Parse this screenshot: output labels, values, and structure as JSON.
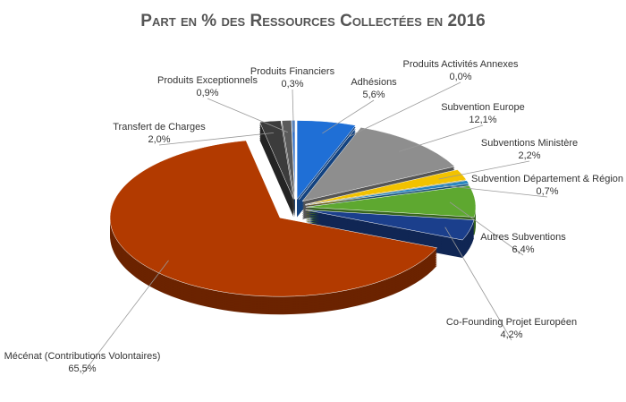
{
  "chart_data": {
    "type": "pie",
    "title": "Part en % des Ressources Collectées en 2016",
    "categories": [
      "Adhésions",
      "Produits Activités Annexes",
      "Subvention Europe",
      "Subventions Ministère",
      "Subvention Département & Région",
      "Autres Subventions",
      "Co-Founding Projet Européen",
      "Mécénat (Contributions Volontaires)",
      "Transfert de Charges",
      "Produits Exceptionnels",
      "Produits Financiers"
    ],
    "values": [
      5.6,
      0.0,
      12.1,
      2.2,
      0.7,
      6.4,
      4.2,
      65.5,
      2.0,
      0.9,
      0.3
    ],
    "value_labels": [
      "5,6%",
      "0,0%",
      "12,1%",
      "2,2%",
      "0,7%",
      "6,4%",
      "4,2%",
      "65,5%",
      "2,0%",
      "0,9%",
      "0,3%"
    ],
    "colors": [
      "#1f6fd6",
      "#e07020",
      "#8e8e8e",
      "#f2c200",
      "#2a86c0",
      "#5ea830",
      "#1b3f8c",
      "#b23a00",
      "#3c3c3c",
      "#5a5a5a",
      "#2f6fc8"
    ]
  }
}
